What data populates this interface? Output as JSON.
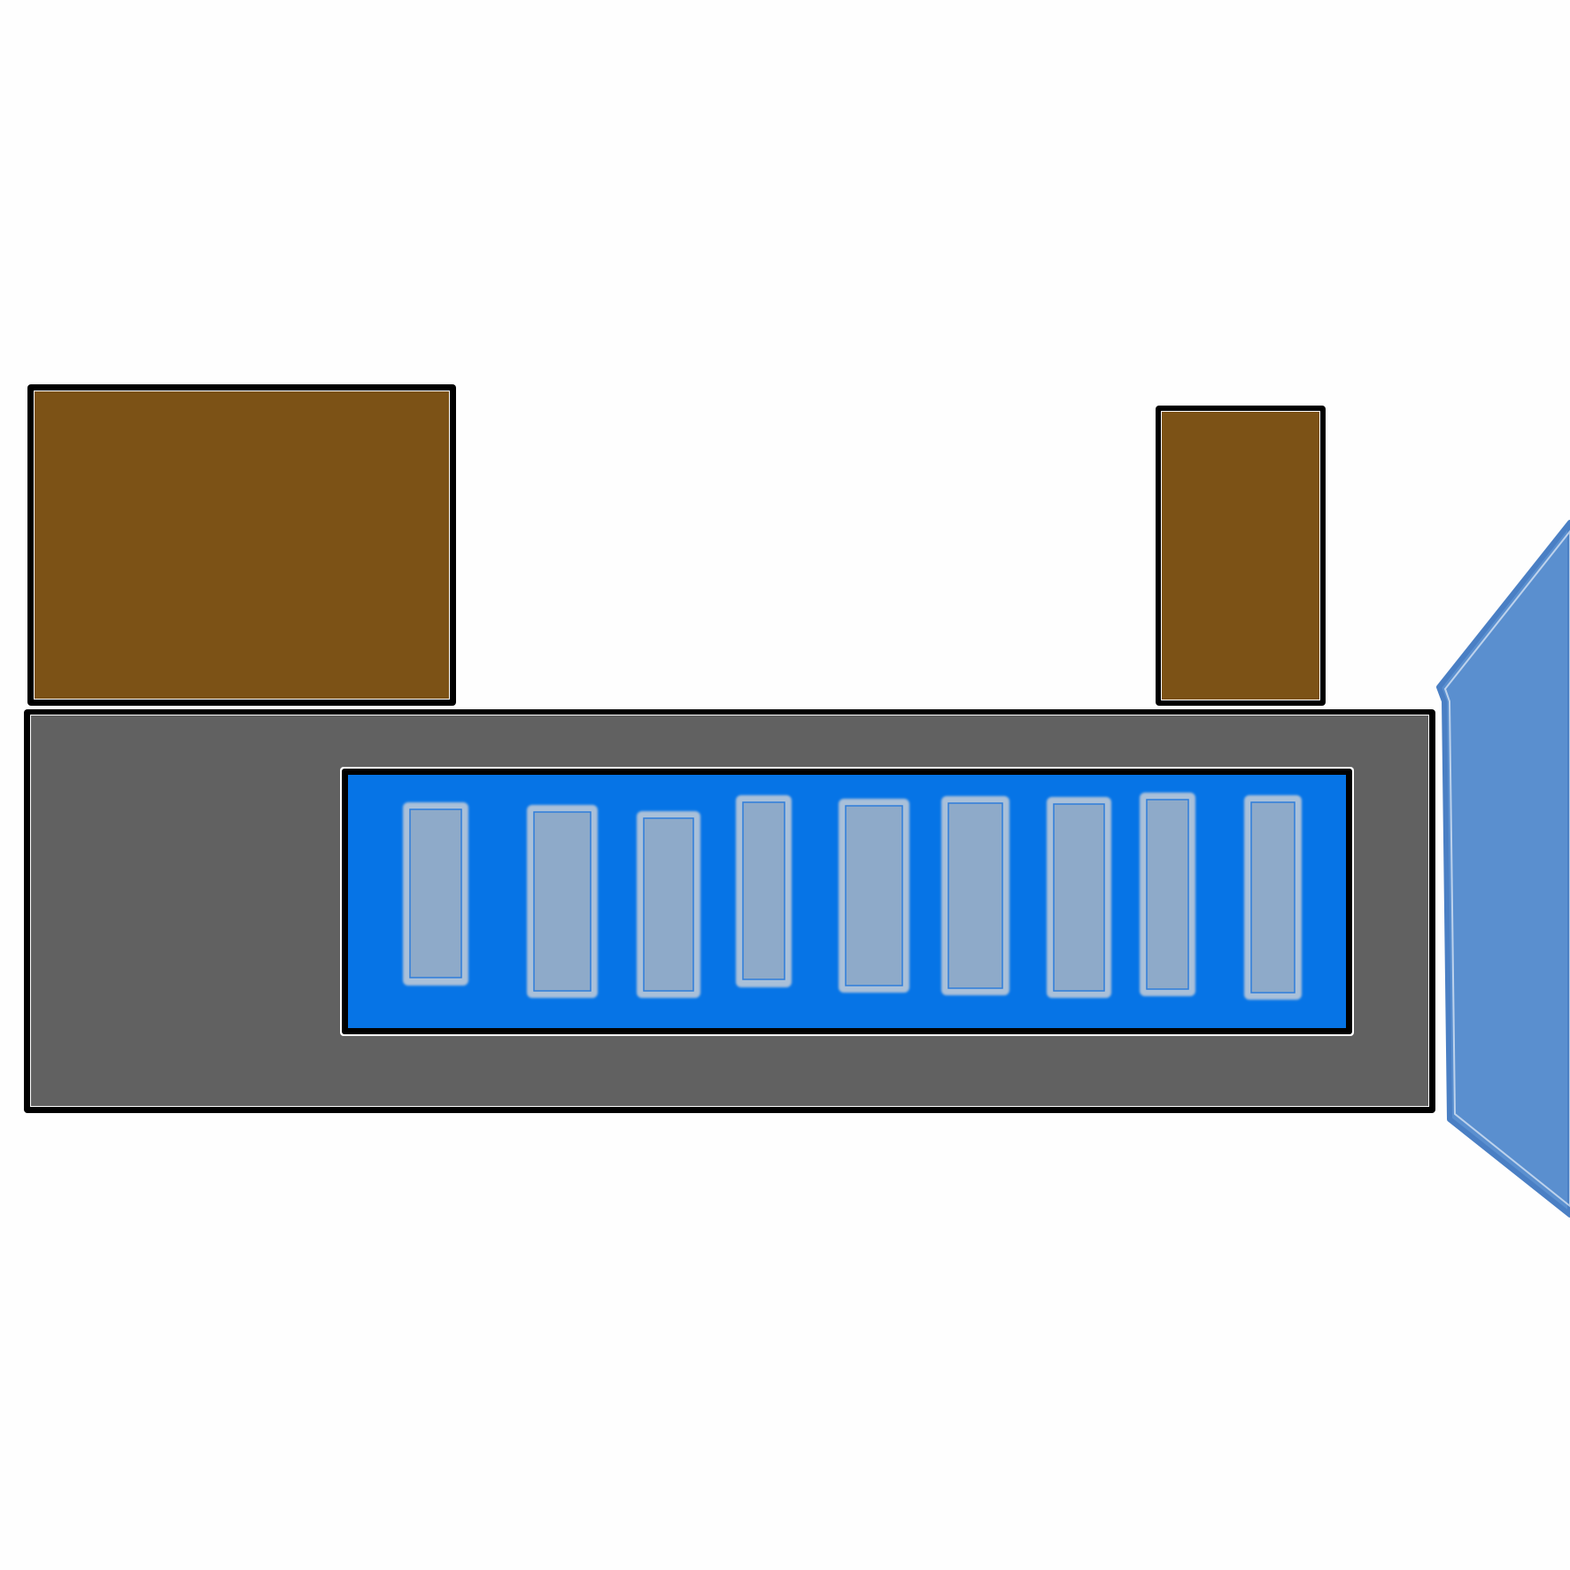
{
  "colors": {
    "background": "#fefefe",
    "outline": "#000000",
    "block_fill": "#7c5216",
    "base_fill": "#616161",
    "panel_fill": "#0674e6",
    "slot_fill": "#8eaac9",
    "slot_edge": "#2f7ddb",
    "polygon_fill": "#5a8fcf",
    "polygon_edge": "#4a7fc4"
  },
  "shapes": {
    "blocks": [
      {
        "name": "left-brown-block"
      },
      {
        "name": "right-brown-block"
      }
    ],
    "base": {
      "name": "gray-base"
    },
    "panel": {
      "name": "blue-panel"
    },
    "slots_count_label": "",
    "polygon": {
      "name": "blue-polygon"
    }
  }
}
